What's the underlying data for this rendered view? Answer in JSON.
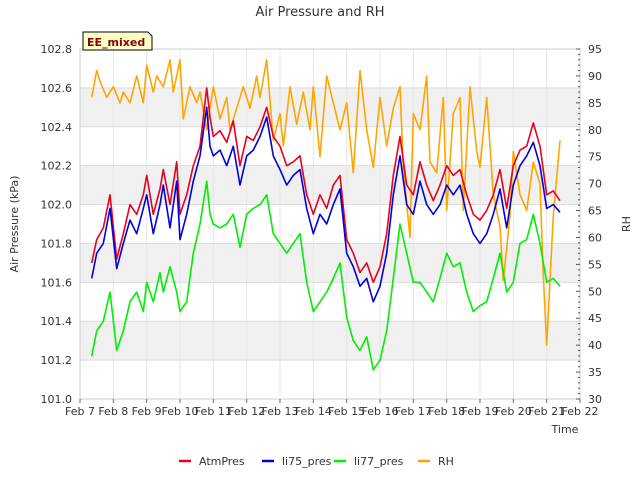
{
  "chart_data": {
    "type": "line",
    "title": "Air Pressure and RH",
    "xlabel": "Time",
    "ylabel": "Air Pressure (kPa)",
    "y2label": "RH",
    "badge": "EE_mixed",
    "x_ticks": [
      "Feb 7",
      "Feb 8",
      "Feb 9",
      "Feb 10",
      "Feb 11",
      "Feb 12",
      "Feb 13",
      "Feb 14",
      "Feb 15",
      "Feb 16",
      "Feb 17",
      "Feb 18",
      "Feb 19",
      "Feb 20",
      "Feb 21",
      "Feb 22"
    ],
    "x_range": [
      7,
      22
    ],
    "ylim": [
      101.0,
      102.8
    ],
    "y_ticks": [
      "101.0",
      "101.2",
      "101.4",
      "101.6",
      "101.8",
      "102.0",
      "102.2",
      "102.4",
      "102.6",
      "102.8"
    ],
    "y2lim": [
      30,
      95
    ],
    "y2_ticks": [
      "30",
      "35",
      "40",
      "45",
      "50",
      "55",
      "60",
      "65",
      "70",
      "75",
      "80",
      "85",
      "90",
      "95"
    ],
    "grid": true,
    "legend_position": "bottom",
    "series": [
      {
        "name": "AtmPres",
        "axis": "left",
        "color": "#e8001c",
        "x": [
          7.35,
          7.5,
          7.7,
          7.9,
          8.1,
          8.3,
          8.5,
          8.7,
          8.9,
          9.0,
          9.2,
          9.4,
          9.5,
          9.7,
          9.9,
          10.0,
          10.2,
          10.4,
          10.6,
          10.8,
          10.9,
          11.0,
          11.2,
          11.4,
          11.6,
          11.8,
          12.0,
          12.2,
          12.4,
          12.6,
          12.8,
          13.0,
          13.2,
          13.4,
          13.6,
          13.8,
          14.0,
          14.2,
          14.4,
          14.6,
          14.8,
          15.0,
          15.2,
          15.4,
          15.6,
          15.8,
          16.0,
          16.2,
          16.4,
          16.6,
          16.8,
          17.0,
          17.2,
          17.4,
          17.6,
          17.8,
          18.0,
          18.2,
          18.4,
          18.6,
          18.8,
          19.0,
          19.2,
          19.4,
          19.6,
          19.8,
          20.0,
          20.2,
          20.4,
          20.6,
          20.8,
          21.0,
          21.2,
          21.4
        ],
        "y": [
          101.7,
          101.82,
          101.88,
          102.05,
          101.72,
          101.85,
          102.0,
          101.95,
          102.05,
          102.15,
          101.95,
          102.08,
          102.18,
          102.0,
          102.22,
          101.95,
          102.05,
          102.2,
          102.3,
          102.6,
          102.45,
          102.35,
          102.38,
          102.32,
          102.43,
          102.2,
          102.35,
          102.33,
          102.4,
          102.5,
          102.35,
          102.3,
          102.2,
          102.22,
          102.25,
          102.05,
          101.95,
          102.05,
          101.98,
          102.1,
          102.15,
          101.82,
          101.75,
          101.65,
          101.7,
          101.6,
          101.68,
          101.85,
          102.15,
          102.35,
          102.1,
          102.05,
          102.22,
          102.1,
          102.02,
          102.1,
          102.2,
          102.15,
          102.18,
          102.05,
          101.95,
          101.92,
          101.97,
          102.05,
          102.18,
          101.98,
          102.2,
          102.28,
          102.3,
          102.42,
          102.3,
          102.05,
          102.07,
          102.02
        ]
      },
      {
        "name": "li75_pres",
        "axis": "left",
        "color": "#0000dd",
        "x": [
          7.35,
          7.5,
          7.7,
          7.9,
          8.1,
          8.3,
          8.5,
          8.7,
          8.9,
          9.0,
          9.2,
          9.4,
          9.5,
          9.7,
          9.9,
          10.0,
          10.2,
          10.4,
          10.6,
          10.8,
          10.9,
          11.0,
          11.2,
          11.4,
          11.6,
          11.8,
          12.0,
          12.2,
          12.4,
          12.6,
          12.8,
          13.0,
          13.2,
          13.4,
          13.6,
          13.8,
          14.0,
          14.2,
          14.4,
          14.6,
          14.8,
          15.0,
          15.2,
          15.4,
          15.6,
          15.8,
          16.0,
          16.2,
          16.4,
          16.6,
          16.8,
          17.0,
          17.2,
          17.4,
          17.6,
          17.8,
          18.0,
          18.2,
          18.4,
          18.6,
          18.8,
          19.0,
          19.2,
          19.4,
          19.6,
          19.8,
          20.0,
          20.2,
          20.4,
          20.6,
          20.8,
          21.0,
          21.2,
          21.4
        ],
        "y": [
          101.62,
          101.75,
          101.8,
          101.98,
          101.67,
          101.8,
          101.92,
          101.85,
          101.98,
          102.05,
          101.85,
          102.0,
          102.1,
          101.88,
          102.12,
          101.82,
          101.95,
          102.12,
          102.25,
          102.5,
          102.3,
          102.25,
          102.28,
          102.2,
          102.3,
          102.1,
          102.25,
          102.28,
          102.35,
          102.45,
          102.25,
          102.18,
          102.1,
          102.15,
          102.18,
          101.98,
          101.85,
          101.95,
          101.9,
          102.0,
          102.08,
          101.75,
          101.68,
          101.58,
          101.62,
          101.5,
          101.58,
          101.75,
          102.05,
          102.25,
          102.0,
          101.95,
          102.12,
          102.0,
          101.95,
          102.0,
          102.1,
          102.05,
          102.1,
          101.95,
          101.85,
          101.8,
          101.85,
          101.95,
          102.08,
          101.88,
          102.1,
          102.2,
          102.25,
          102.32,
          102.2,
          101.98,
          102.0,
          101.96
        ]
      },
      {
        "name": "li77_pres",
        "axis": "left",
        "color": "#00ee00",
        "x": [
          7.35,
          7.5,
          7.7,
          7.9,
          8.1,
          8.3,
          8.5,
          8.7,
          8.9,
          9.0,
          9.2,
          9.4,
          9.5,
          9.7,
          9.9,
          10.0,
          10.2,
          10.4,
          10.6,
          10.8,
          10.9,
          11.0,
          11.2,
          11.4,
          11.6,
          11.8,
          12.0,
          12.2,
          12.4,
          12.6,
          12.8,
          13.0,
          13.2,
          13.4,
          13.6,
          13.8,
          14.0,
          14.2,
          14.4,
          14.6,
          14.8,
          15.0,
          15.2,
          15.4,
          15.6,
          15.8,
          16.0,
          16.2,
          16.4,
          16.6,
          16.8,
          17.0,
          17.2,
          17.4,
          17.6,
          17.8,
          18.0,
          18.2,
          18.4,
          18.6,
          18.8,
          19.0,
          19.2,
          19.4,
          19.6,
          19.8,
          20.0,
          20.2,
          20.4,
          20.6,
          20.8,
          21.0,
          21.2,
          21.4
        ],
        "y": [
          101.22,
          101.35,
          101.4,
          101.55,
          101.25,
          101.35,
          101.5,
          101.55,
          101.45,
          101.6,
          101.5,
          101.65,
          101.55,
          101.68,
          101.55,
          101.45,
          101.5,
          101.75,
          101.9,
          102.12,
          101.95,
          101.9,
          101.88,
          101.9,
          101.95,
          101.78,
          101.95,
          101.98,
          102.0,
          102.05,
          101.85,
          101.8,
          101.75,
          101.8,
          101.85,
          101.6,
          101.45,
          101.5,
          101.55,
          101.62,
          101.7,
          101.42,
          101.3,
          101.25,
          101.32,
          101.15,
          101.2,
          101.35,
          101.62,
          101.9,
          101.75,
          101.6,
          101.6,
          101.55,
          101.5,
          101.62,
          101.75,
          101.68,
          101.7,
          101.55,
          101.45,
          101.48,
          101.5,
          101.62,
          101.75,
          101.55,
          101.6,
          101.8,
          101.82,
          101.95,
          101.8,
          101.6,
          101.62,
          101.58
        ]
      },
      {
        "name": "RH",
        "axis": "right",
        "color": "#ffa500",
        "x": [
          7.35,
          7.5,
          7.6,
          7.8,
          8.0,
          8.2,
          8.3,
          8.5,
          8.7,
          8.9,
          9.0,
          9.2,
          9.3,
          9.5,
          9.7,
          9.8,
          10.0,
          10.1,
          10.3,
          10.5,
          10.6,
          10.8,
          11.0,
          11.2,
          11.4,
          11.5,
          11.7,
          11.9,
          12.1,
          12.3,
          12.4,
          12.6,
          12.8,
          13.0,
          13.1,
          13.3,
          13.5,
          13.7,
          13.9,
          14.0,
          14.2,
          14.4,
          14.6,
          14.8,
          15.0,
          15.2,
          15.4,
          15.6,
          15.8,
          16.0,
          16.2,
          16.4,
          16.6,
          16.7,
          16.9,
          17.0,
          17.2,
          17.4,
          17.5,
          17.7,
          17.9,
          18.0,
          18.2,
          18.4,
          18.5,
          18.7,
          18.9,
          19.0,
          19.2,
          19.4,
          19.6,
          19.7,
          19.9,
          20.0,
          20.2,
          20.4,
          20.6,
          20.8,
          20.9,
          21.0,
          21.2,
          21.4
        ],
        "y": [
          86,
          91,
          89,
          86,
          88,
          85,
          87,
          85,
          90,
          85,
          92,
          87,
          90,
          88,
          93,
          87,
          93,
          82,
          88,
          85,
          87,
          80,
          88,
          82,
          86,
          80,
          84,
          88,
          84,
          90,
          86,
          93,
          78,
          83,
          77,
          88,
          81,
          87,
          80,
          88,
          75,
          90,
          85,
          80,
          85,
          72,
          91,
          80,
          73,
          86,
          77,
          84,
          88,
          73,
          60,
          83,
          80,
          90,
          74,
          72,
          86,
          65,
          83,
          86,
          65,
          88,
          76,
          73,
          86,
          68,
          62,
          52,
          64,
          76,
          68,
          65,
          74,
          70,
          53,
          40,
          64,
          78
        ]
      }
    ]
  }
}
